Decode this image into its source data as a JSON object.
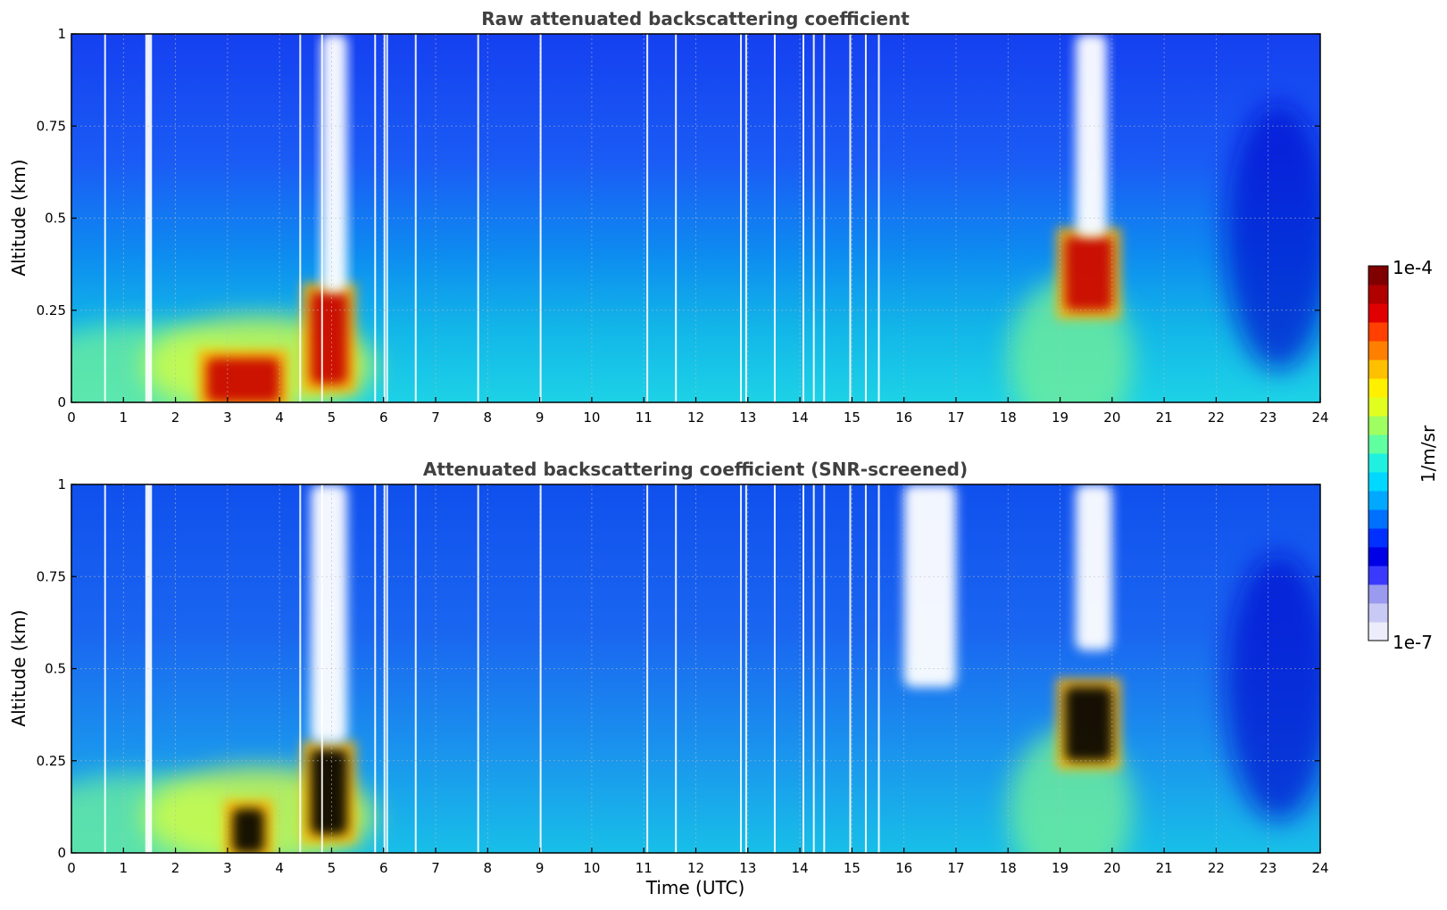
{
  "chart_data": [
    {
      "type": "heatmap",
      "title": "Raw attenuated backscattering coefficient",
      "ylabel": "Altitude (km)",
      "xlabel": "",
      "xlim": [
        0,
        24
      ],
      "ylim": [
        0,
        1
      ],
      "x_ticks": [
        "0",
        "1",
        "2",
        "3",
        "4",
        "5",
        "6",
        "7",
        "8",
        "9",
        "10",
        "11",
        "12",
        "13",
        "14",
        "15",
        "16",
        "17",
        "18",
        "19",
        "20",
        "21",
        "22",
        "23",
        "24"
      ],
      "y_ticks": [
        "0",
        "0.25",
        "0.5",
        "0.75",
        "1"
      ],
      "grid": true,
      "colormap": "jet",
      "features": [
        {
          "x": [
            2.6,
            4.0
          ],
          "y": [
            0.0,
            0.12
          ],
          "level": "high"
        },
        {
          "x": [
            4.6,
            5.3
          ],
          "y": [
            0.05,
            0.3
          ],
          "level": "high"
        },
        {
          "x": [
            19.1,
            20.0
          ],
          "y": [
            0.25,
            0.45
          ],
          "level": "high"
        },
        {
          "x": [
            4.8,
            5.3
          ],
          "y": [
            0.3,
            1.0
          ],
          "level": "missing"
        },
        {
          "x": [
            19.3,
            19.9
          ],
          "y": [
            0.45,
            1.0
          ],
          "level": "missing"
        }
      ]
    },
    {
      "type": "heatmap",
      "title": "Attenuated backscattering coefficient (SNR-screened)",
      "ylabel": "Altitude (km)",
      "xlabel": "Time (UTC)",
      "xlim": [
        0,
        24
      ],
      "ylim": [
        0,
        1
      ],
      "x_ticks": [
        "0",
        "1",
        "2",
        "3",
        "4",
        "5",
        "6",
        "7",
        "8",
        "9",
        "10",
        "11",
        "12",
        "13",
        "14",
        "15",
        "16",
        "17",
        "18",
        "19",
        "20",
        "21",
        "22",
        "23",
        "24"
      ],
      "y_ticks": [
        "0",
        "0.25",
        "0.5",
        "0.75",
        "1"
      ],
      "grid": true,
      "colormap": "jet",
      "features": [
        {
          "x": [
            3.1,
            3.7
          ],
          "y": [
            0.0,
            0.12
          ],
          "level": "saturated"
        },
        {
          "x": [
            4.6,
            5.3
          ],
          "y": [
            0.05,
            0.28
          ],
          "level": "saturated"
        },
        {
          "x": [
            19.1,
            20.0
          ],
          "y": [
            0.25,
            0.45
          ],
          "level": "saturated"
        },
        {
          "x": [
            4.6,
            5.3
          ],
          "y": [
            0.3,
            1.0
          ],
          "level": "screened"
        },
        {
          "x": [
            16.0,
            17.0
          ],
          "y": [
            0.45,
            1.0
          ],
          "level": "screened"
        },
        {
          "x": [
            19.3,
            20.0
          ],
          "y": [
            0.55,
            1.0
          ],
          "level": "screened"
        }
      ]
    }
  ],
  "colorbar": {
    "label": "1/m/sr",
    "min_label": "1e-7",
    "max_label": "1e-4",
    "colors": [
      "#ececfa",
      "#c9c9f5",
      "#9a9aee",
      "#3a3aff",
      "#0000e6",
      "#0030ff",
      "#0070ff",
      "#00a8ff",
      "#00d8ff",
      "#20f0e0",
      "#60ffa0",
      "#a0ff60",
      "#e0ff20",
      "#fff000",
      "#ffc000",
      "#ff8000",
      "#ff4000",
      "#e00000",
      "#b00000",
      "#800000"
    ]
  }
}
